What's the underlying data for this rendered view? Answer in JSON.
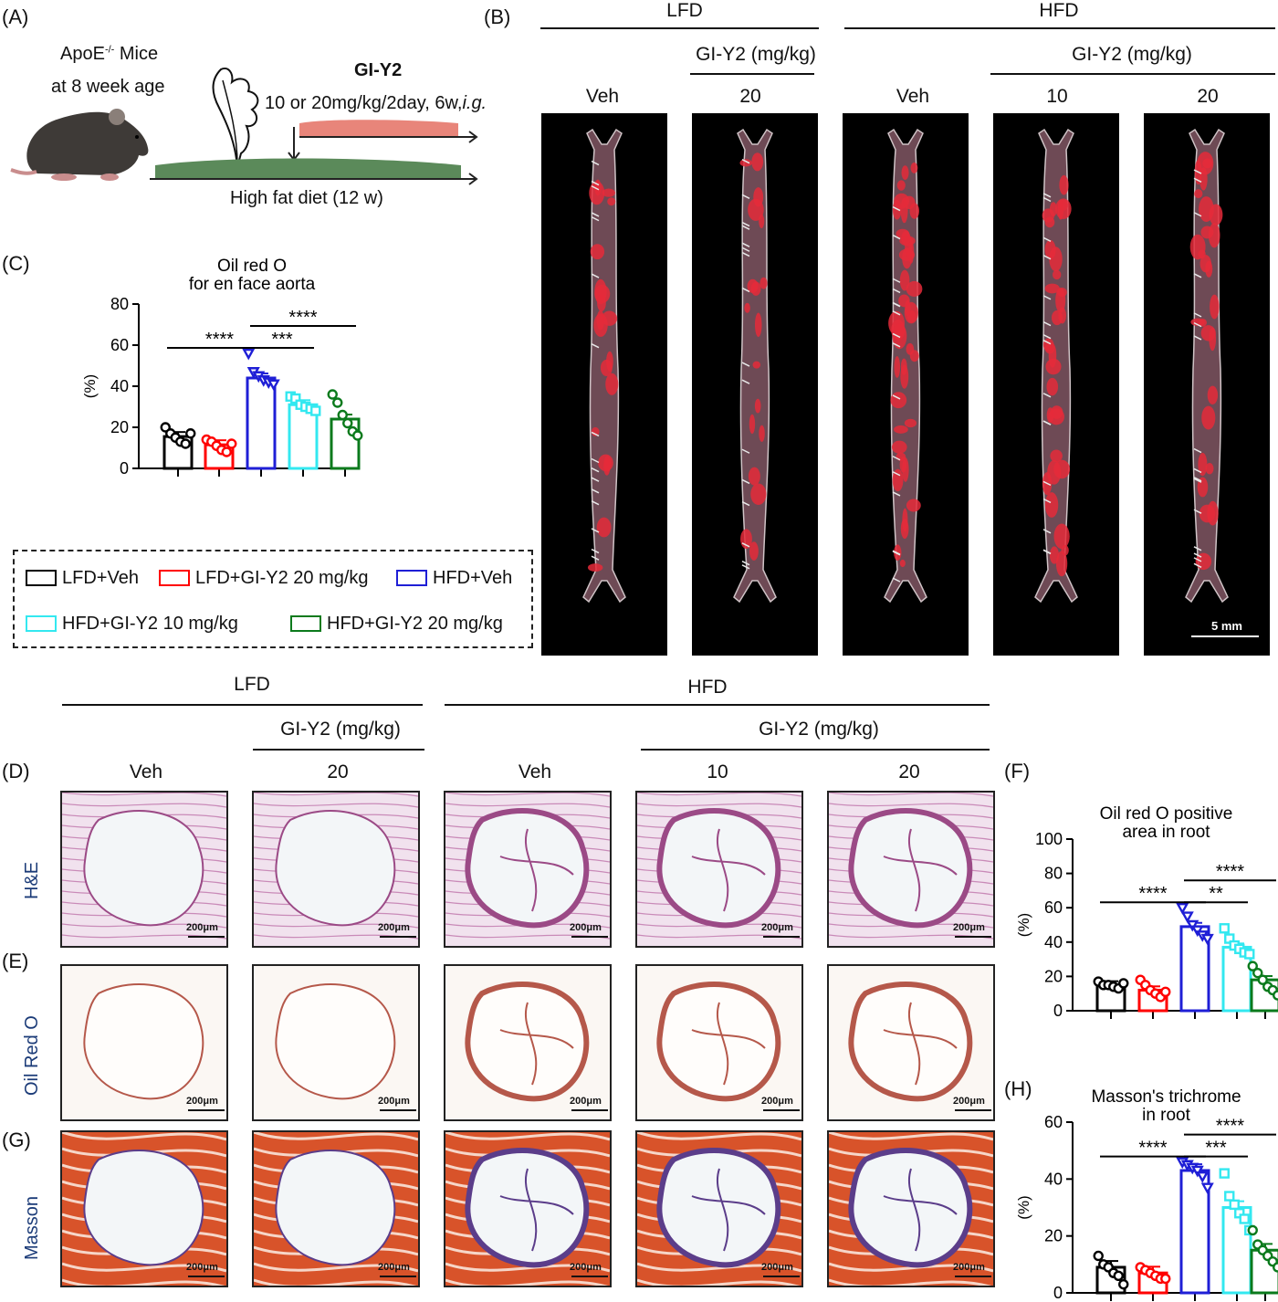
{
  "labels": {
    "A": "(A)",
    "B": "(B)",
    "C": "(C)",
    "D": "(D)",
    "E": "(E)",
    "F": "(F)",
    "G": "(G)",
    "H": "(H)"
  },
  "schematic": {
    "mice_line1": "ApoE",
    "mice_sup": "-/-",
    "mice_line1_rest": " Mice",
    "mice_line2": "at 8 week age",
    "drug": "GI-Y2",
    "dose_prefix": "10 or 20mg/kg/2day, 6w,",
    "dose_route": "i.g.",
    "diet": "High fat diet (12 w)",
    "colors": {
      "drug_bar": "#e8857a",
      "diet_bar": "#5b8a5a",
      "mouse": "#3e3a37"
    }
  },
  "groups_header": {
    "lfd": "LFD",
    "hfd": "HFD",
    "gi_y2": "GI-Y2 (mg/kg)",
    "veh": "Veh",
    "d10": "10",
    "d20": "20"
  },
  "aorta": {
    "scale_bar": "5 mm"
  },
  "micro": {
    "row_he": "H&E",
    "row_oro": "Oil Red O",
    "row_masson": "Masson",
    "scale_bar": "200μm"
  },
  "legend": {
    "items": [
      {
        "label": "LFD+Veh",
        "color": "#000000"
      },
      {
        "label": "LFD+GI-Y2 20 mg/kg",
        "color": "#ff0000"
      },
      {
        "label": "HFD+Veh",
        "color": "#1f1fd6"
      },
      {
        "label": "HFD+GI-Y2 10 mg/kg",
        "color": "#33e8f0"
      },
      {
        "label": "HFD+GI-Y2 20 mg/kg",
        "color": "#0b7a1c"
      }
    ]
  },
  "chart_data": [
    {
      "id": "C",
      "type": "bar",
      "title": "Oil red O",
      "subtitle": "for en face aorta",
      "ylabel": "(%)",
      "ylim": [
        0,
        80
      ],
      "yticks": [
        0,
        20,
        40,
        60,
        80
      ],
      "values": [
        15.5,
        11.5,
        44,
        31,
        24
      ],
      "points": [
        [
          20,
          17,
          15,
          13,
          12,
          17
        ],
        [
          14,
          13,
          11,
          9,
          8,
          12
        ],
        [
          56,
          47,
          45,
          43,
          42,
          41
        ],
        [
          35,
          34,
          31,
          30,
          29,
          28
        ],
        [
          36,
          32,
          26,
          22,
          18,
          16
        ]
      ],
      "markers": [
        "circle",
        "circle",
        "triangle",
        "square",
        "circle"
      ],
      "significance": [
        {
          "from": 0,
          "to": 2,
          "label": "****"
        },
        {
          "from": 2,
          "to": 3,
          "label": "***"
        },
        {
          "from": 2,
          "to": 4,
          "label": "****"
        }
      ]
    },
    {
      "id": "F",
      "type": "bar",
      "title": "Oil red O positive",
      "subtitle": "area in root",
      "ylabel": "(%)",
      "ylim": [
        0,
        100
      ],
      "yticks": [
        0,
        20,
        40,
        60,
        80,
        100
      ],
      "values": [
        15,
        12,
        49,
        37,
        18
      ],
      "points": [
        [
          17,
          15,
          15,
          14,
          13,
          16
        ],
        [
          18,
          15,
          12,
          10,
          8,
          11
        ],
        [
          60,
          55,
          50,
          47,
          44,
          42
        ],
        [
          48,
          42,
          38,
          36,
          34,
          33
        ],
        [
          26,
          22,
          18,
          14,
          12,
          9
        ]
      ],
      "markers": [
        "circle",
        "circle",
        "triangle",
        "square",
        "circle"
      ],
      "significance": [
        {
          "from": 0,
          "to": 2,
          "label": "****"
        },
        {
          "from": 2,
          "to": 3,
          "label": "**"
        },
        {
          "from": 2,
          "to": 4,
          "label": "****"
        }
      ]
    },
    {
      "id": "H",
      "type": "bar",
      "title": "Masson's trichrome",
      "subtitle": "in root",
      "ylabel": "(%)",
      "ylim": [
        0,
        60
      ],
      "yticks": [
        0,
        20,
        40,
        60
      ],
      "values": [
        9,
        7,
        43,
        30,
        15
      ],
      "points": [
        [
          13,
          10,
          9,
          7,
          6,
          3
        ],
        [
          9,
          8,
          7,
          6,
          5,
          5
        ],
        [
          46,
          45,
          44,
          43,
          41,
          37
        ],
        [
          42,
          34,
          31,
          28,
          26,
          22
        ],
        [
          22,
          17,
          15,
          13,
          11,
          9
        ]
      ],
      "markers": [
        "circle",
        "circle",
        "triangle",
        "square",
        "circle"
      ],
      "significance": [
        {
          "from": 0,
          "to": 2,
          "label": "****"
        },
        {
          "from": 2,
          "to": 3,
          "label": "***"
        },
        {
          "from": 2,
          "to": 4,
          "label": "****"
        }
      ]
    }
  ]
}
